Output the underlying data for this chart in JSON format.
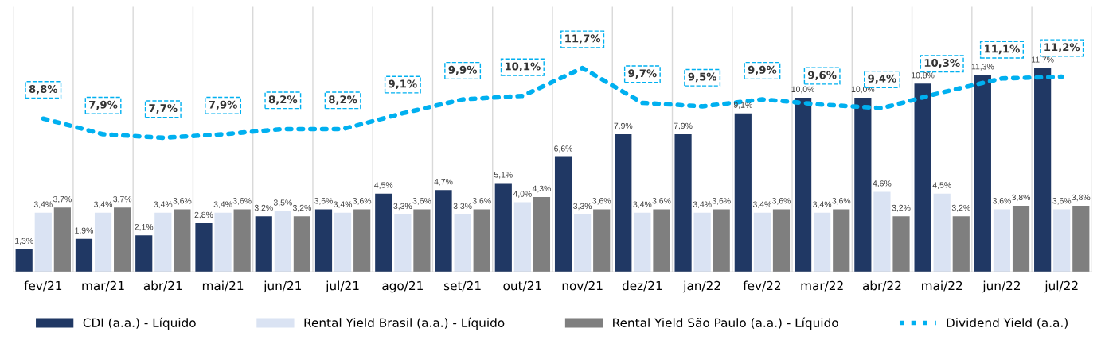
{
  "chart_data": {
    "type": "bar",
    "categories": [
      "fev/21",
      "mar/21",
      "abr/21",
      "mai/21",
      "jun/21",
      "jul/21",
      "ago/21",
      "set/21",
      "out/21",
      "nov/21",
      "dez/21",
      "jan/22",
      "fev/22",
      "mar/22",
      "abr/22",
      "mai/22",
      "jun/22",
      "jul/22"
    ],
    "series": [
      {
        "name": "CDI (a.a.) - Líquido",
        "color": "#203864",
        "values": [
          1.3,
          1.9,
          2.1,
          2.8,
          3.2,
          3.6,
          4.5,
          4.7,
          5.1,
          6.6,
          7.9,
          7.9,
          9.1,
          10.0,
          10.0,
          10.8,
          11.3,
          11.7
        ],
        "value_labels": [
          "1,3%",
          "1,9%",
          "2,1%",
          "2,8%",
          "3,2%",
          "3,6%",
          "4,5%",
          "4,7%",
          "5,1%",
          "6,6%",
          "7,9%",
          "7,9%",
          "9,1%",
          "10,0%",
          "10,0%",
          "10,8%",
          "11,3%",
          "11,7%"
        ]
      },
      {
        "name": "Rental Yield Brasil (a.a.) - Líquido",
        "color": "#dae3f3",
        "values": [
          3.4,
          3.4,
          3.4,
          3.4,
          3.5,
          3.4,
          3.3,
          3.3,
          4.0,
          3.3,
          3.4,
          3.4,
          3.4,
          3.4,
          4.6,
          4.5,
          3.6,
          3.6
        ],
        "value_labels": [
          "3,4%",
          "3,4%",
          "3,4%",
          "3,4%",
          "3,5%",
          "3,4%",
          "3,3%",
          "3,3%",
          "4,0%",
          "3,3%",
          "3,4%",
          "3,4%",
          "3,4%",
          "3,4%",
          "4,6%",
          "4,5%",
          "3,6%",
          "3,6%"
        ]
      },
      {
        "name": "Rental Yield São Paulo (a.a.) - Líquido",
        "color": "#7f7f7f",
        "values": [
          3.7,
          3.7,
          3.6,
          3.6,
          3.2,
          3.6,
          3.6,
          3.6,
          4.3,
          3.6,
          3.6,
          3.6,
          3.6,
          3.6,
          3.2,
          3.2,
          3.8,
          3.8
        ],
        "value_labels": [
          "3,7%",
          "3,7%",
          "3,6%",
          "3,6%",
          "3,2%",
          "3,6%",
          "3,6%",
          "3,6%",
          "4,3%",
          "3,6%",
          "3,6%",
          "3,6%",
          "3,6%",
          "3,6%",
          "3,2%",
          "3,2%",
          "3,8%",
          "3,8%"
        ]
      },
      {
        "name": "Dividend Yield (a.a.)",
        "type": "line",
        "line_style": "dotted",
        "color": "#00b0f0",
        "values": [
          8.8,
          7.9,
          7.7,
          7.9,
          8.2,
          8.2,
          9.1,
          9.9,
          10.1,
          11.7,
          9.7,
          9.5,
          9.9,
          9.6,
          9.4,
          10.3,
          11.1,
          11.2
        ],
        "value_labels": [
          "8,8%",
          "7,9%",
          "7,7%",
          "7,9%",
          "8,2%",
          "8,2%",
          "9,1%",
          "9,9%",
          "10,1%",
          "11,7%",
          "9,7%",
          "9,5%",
          "9,9%",
          "9,6%",
          "9,4%",
          "10,3%",
          "11,1%",
          "11,2%"
        ]
      }
    ],
    "grid": "x",
    "legend": "bottom",
    "marker": "none"
  }
}
